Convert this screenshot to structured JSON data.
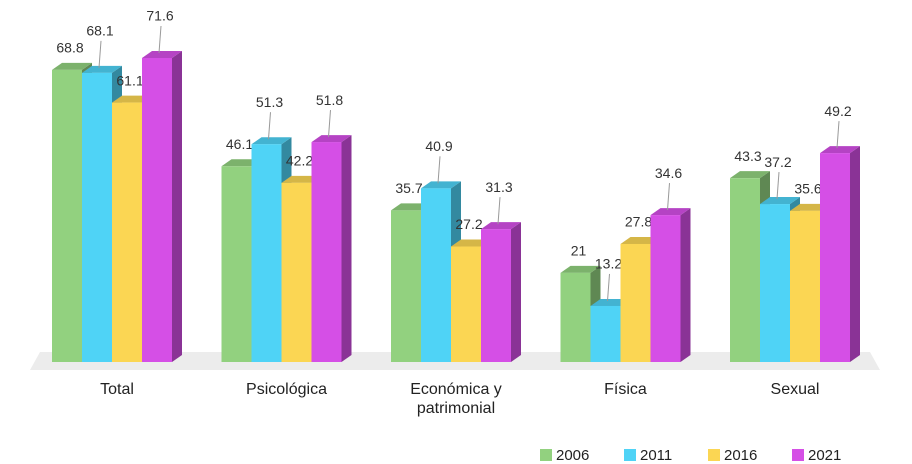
{
  "chart_data": {
    "type": "bar3d",
    "categories": [
      "Total",
      "Psicológica",
      "Económica y patrimonial",
      "Física",
      "Sexual"
    ],
    "series": [
      {
        "name": "2006",
        "color": "#92d17f",
        "values": [
          68.8,
          46.1,
          35.7,
          21,
          43.3
        ]
      },
      {
        "name": "2011",
        "color": "#4fd3f6",
        "values": [
          68.1,
          51.3,
          40.9,
          13.2,
          37.2
        ]
      },
      {
        "name": "2016",
        "color": "#fbd653",
        "values": [
          61.1,
          42.2,
          27.2,
          27.8,
          35.6
        ]
      },
      {
        "name": "2021",
        "color": "#d54fe6",
        "values": [
          71.6,
          51.8,
          31.3,
          34.6,
          49.2
        ]
      }
    ],
    "legend": "bottom-right"
  }
}
